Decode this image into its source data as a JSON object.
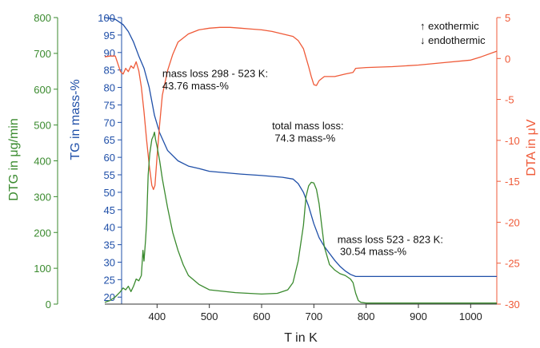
{
  "chart_data": {
    "type": "line",
    "xlabel": "T in K",
    "x_ticks": [
      400,
      500,
      600,
      700,
      800,
      900,
      1000
    ],
    "xlim": [
      300,
      1050
    ],
    "axes": {
      "dtg": {
        "label_prefix": "DTG in ",
        "label_unit": "μg/min",
        "ylim": [
          0,
          800
        ],
        "ticks": [
          0,
          100,
          200,
          300,
          400,
          500,
          600,
          700,
          800
        ],
        "color": "#3a8a2e"
      },
      "tg": {
        "label": "TG in mass-%",
        "ylim": [
          18,
          100
        ],
        "ticks": [
          20,
          25,
          30,
          35,
          40,
          45,
          50,
          55,
          60,
          65,
          70,
          75,
          80,
          85,
          90,
          95,
          100
        ],
        "color": "#1f4fa8"
      },
      "dta": {
        "label_prefix": "DTA in ",
        "label_unit": "μV",
        "ylim": [
          -30,
          5
        ],
        "ticks": [
          5,
          0,
          -5,
          -10,
          -15,
          -20,
          -25,
          -30
        ],
        "color": "#ef5a38"
      }
    },
    "series": [
      {
        "axis": "tg",
        "x": [
          300,
          320,
          335,
          345,
          355,
          365,
          375,
          385,
          395,
          405,
          420,
          440,
          460,
          480,
          500,
          530,
          560,
          600,
          640,
          660,
          670,
          680,
          690,
          700,
          710,
          720,
          730,
          740,
          750,
          760,
          770,
          780,
          800,
          850,
          900,
          950,
          1000,
          1050
        ],
        "y": [
          100,
          99.5,
          98,
          96,
          93,
          89,
          85.5,
          80,
          72,
          67,
          62,
          59,
          57.5,
          56.8,
          56,
          55.6,
          55.2,
          54.8,
          54.3,
          53.8,
          52.5,
          50,
          46,
          41,
          37,
          34.5,
          32.5,
          30.5,
          28.8,
          27.5,
          26.5,
          25.9,
          25.9,
          25.9,
          25.9,
          25.9,
          25.9,
          25.9
        ]
      },
      {
        "axis": "dta",
        "x": [
          300,
          310,
          320,
          330,
          335,
          340,
          345,
          350,
          355,
          360,
          365,
          370,
          375,
          380,
          385,
          390,
          393,
          396,
          400,
          405,
          410,
          420,
          430,
          440,
          460,
          480,
          500,
          520,
          540,
          560,
          580,
          600,
          620,
          640,
          660,
          670,
          680,
          690,
          695,
          700,
          705,
          710,
          720,
          740,
          760,
          775,
          780,
          800,
          850,
          900,
          950,
          1000,
          1020,
          1050
        ],
        "y": [
          0.2,
          0.3,
          0.3,
          -1.6,
          -1.9,
          -1.2,
          -1.6,
          -0.9,
          -1.2,
          -0.4,
          -1.5,
          -3.5,
          -6.5,
          -10,
          -13,
          -15.5,
          -16,
          -15.5,
          -12,
          -8,
          -4.5,
          -1.5,
          0.5,
          2,
          3,
          3.5,
          3.7,
          3.8,
          3.8,
          3.7,
          3.6,
          3.5,
          3.3,
          3,
          2.7,
          2.2,
          1.2,
          -1,
          -2.2,
          -3.2,
          -3.3,
          -2.7,
          -2.2,
          -2.2,
          -1.9,
          -1.7,
          -1.2,
          -1.1,
          -1,
          -0.8,
          -0.5,
          -0.2,
          0.2,
          0.9
        ]
      },
      {
        "axis": "dtg",
        "x": [
          300,
          310,
          320,
          330,
          335,
          340,
          345,
          350,
          355,
          360,
          365,
          370,
          373,
          375,
          378,
          380,
          383,
          386,
          390,
          393,
          395,
          397,
          400,
          405,
          410,
          420,
          430,
          440,
          450,
          460,
          480,
          500,
          550,
          600,
          630,
          650,
          660,
          670,
          680,
          685,
          690,
          695,
          700,
          705,
          710,
          715,
          720,
          730,
          740,
          750,
          760,
          770,
          775,
          780,
          785,
          790,
          800,
          850,
          900,
          950,
          1000,
          1050
        ],
        "y": [
          5,
          10,
          20,
          35,
          45,
          40,
          50,
          35,
          50,
          70,
          65,
          80,
          150,
          120,
          180,
          230,
          360,
          420,
          460,
          470,
          480,
          460,
          440,
          400,
          350,
          270,
          200,
          150,
          110,
          80,
          55,
          40,
          32,
          28,
          30,
          40,
          60,
          120,
          220,
          300,
          330,
          340,
          338,
          320,
          280,
          220,
          160,
          110,
          95,
          85,
          80,
          70,
          60,
          30,
          10,
          5,
          3,
          3,
          3,
          3,
          3,
          3
        ]
      }
    ],
    "annotations": [
      {
        "text": "mass loss 298 - 523 K:",
        "x": 410,
        "tg": 83
      },
      {
        "text": "43.76 mass-%",
        "x": 410,
        "tg": 79.5
      },
      {
        "text": "total mass loss:",
        "x": 620,
        "tg": 68
      },
      {
        "text": "74.3 mass-%",
        "x": 625,
        "tg": 64.5
      },
      {
        "text": "mass loss 523 - 823 K:",
        "x": 745,
        "tg": 35.5
      },
      {
        "text": "30.54 mass-%",
        "x": 750,
        "tg": 32
      }
    ],
    "legend": {
      "line1": "↑ exothermic",
      "line2": "↓ endothermic"
    }
  }
}
